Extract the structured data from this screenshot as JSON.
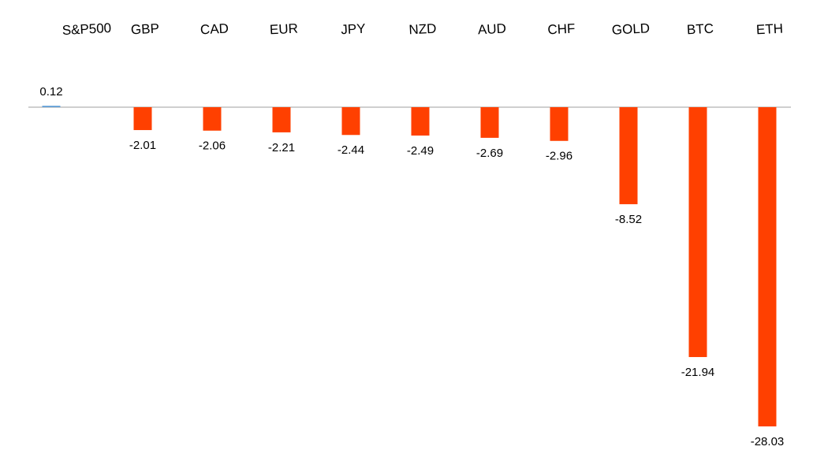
{
  "chart_data": {
    "type": "bar",
    "categories": [
      "S&P500",
      "GBP",
      "CAD",
      "EUR",
      "JPY",
      "NZD",
      "AUD",
      "CHF",
      "GOLD",
      "BTC",
      "ETH"
    ],
    "values": [
      0.12,
      -2.01,
      -2.06,
      -2.21,
      -2.44,
      -2.49,
      -2.69,
      -2.96,
      -8.52,
      -21.94,
      -28.03
    ],
    "color_positive": "#5b9bd5",
    "color_negative": "#ff4000"
  }
}
